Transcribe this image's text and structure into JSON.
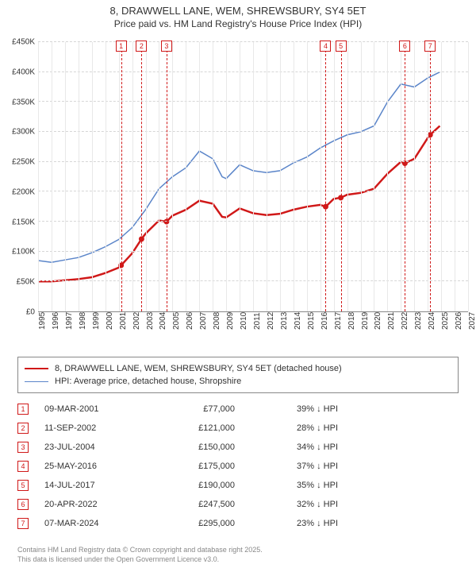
{
  "title": "8, DRAWWELL LANE, WEM, SHREWSBURY, SY4 5ET",
  "subtitle": "Price paid vs. HM Land Registry's House Price Index (HPI)",
  "chart": {
    "type": "line",
    "x_domain": [
      1995,
      2027
    ],
    "y_domain": [
      0,
      450000
    ],
    "y_ticks": [
      0,
      50000,
      100000,
      150000,
      200000,
      250000,
      300000,
      350000,
      400000,
      450000
    ],
    "y_tick_labels": [
      "£0",
      "£50K",
      "£100K",
      "£150K",
      "£200K",
      "£250K",
      "£300K",
      "£350K",
      "£400K",
      "£450K"
    ],
    "x_ticks": [
      1995,
      1996,
      1997,
      1998,
      1999,
      2000,
      2001,
      2002,
      2003,
      2004,
      2005,
      2006,
      2007,
      2008,
      2009,
      2010,
      2011,
      2012,
      2013,
      2014,
      2015,
      2016,
      2017,
      2018,
      2019,
      2020,
      2021,
      2022,
      2023,
      2024,
      2025,
      2026,
      2027
    ],
    "grid_color": "#d6d6d6",
    "background_color": "#ffffff",
    "series": [
      {
        "name": "hpi",
        "label": "HPI: Average price, detached house, Shropshire",
        "color": "#5b85c9",
        "width": 1.5,
        "points": [
          [
            1995.0,
            85000
          ],
          [
            1996.0,
            82000
          ],
          [
            1997.0,
            86000
          ],
          [
            1998.0,
            90000
          ],
          [
            1999.0,
            98000
          ],
          [
            2000.0,
            108000
          ],
          [
            2001.0,
            120000
          ],
          [
            2002.0,
            140000
          ],
          [
            2003.0,
            170000
          ],
          [
            2004.0,
            205000
          ],
          [
            2005.0,
            225000
          ],
          [
            2006.0,
            240000
          ],
          [
            2007.0,
            268000
          ],
          [
            2008.0,
            255000
          ],
          [
            2008.7,
            225000
          ],
          [
            2009.0,
            222000
          ],
          [
            2010.0,
            245000
          ],
          [
            2011.0,
            235000
          ],
          [
            2012.0,
            232000
          ],
          [
            2013.0,
            235000
          ],
          [
            2014.0,
            248000
          ],
          [
            2015.0,
            258000
          ],
          [
            2016.0,
            273000
          ],
          [
            2017.0,
            285000
          ],
          [
            2018.0,
            295000
          ],
          [
            2019.0,
            300000
          ],
          [
            2020.0,
            310000
          ],
          [
            2021.0,
            350000
          ],
          [
            2022.0,
            380000
          ],
          [
            2023.0,
            375000
          ],
          [
            2024.0,
            390000
          ],
          [
            2024.9,
            400000
          ]
        ]
      },
      {
        "name": "price_paid",
        "label": "8, DRAWWELL LANE, WEM, SHREWSBURY, SY4 5ET (detached house)",
        "color": "#d01818",
        "width": 2.5,
        "points": [
          [
            1995.0,
            50000
          ],
          [
            1996.0,
            50000
          ],
          [
            1997.0,
            52000
          ],
          [
            1998.0,
            54000
          ],
          [
            1999.0,
            57000
          ],
          [
            2000.0,
            64000
          ],
          [
            2001.0,
            73000
          ],
          [
            2001.18,
            77000
          ],
          [
            2002.0,
            97000
          ],
          [
            2002.7,
            121000
          ],
          [
            2003.0,
            130000
          ],
          [
            2004.0,
            152000
          ],
          [
            2004.56,
            150000
          ],
          [
            2005.0,
            160000
          ],
          [
            2006.0,
            170000
          ],
          [
            2007.0,
            185000
          ],
          [
            2008.0,
            180000
          ],
          [
            2008.7,
            158000
          ],
          [
            2009.0,
            157000
          ],
          [
            2010.0,
            172000
          ],
          [
            2011.0,
            164000
          ],
          [
            2012.0,
            161000
          ],
          [
            2013.0,
            163000
          ],
          [
            2014.0,
            170000
          ],
          [
            2015.0,
            175000
          ],
          [
            2016.0,
            178000
          ],
          [
            2016.4,
            175000
          ],
          [
            2017.0,
            188000
          ],
          [
            2017.53,
            190000
          ],
          [
            2018.0,
            195000
          ],
          [
            2019.0,
            198000
          ],
          [
            2020.0,
            205000
          ],
          [
            2021.0,
            230000
          ],
          [
            2022.0,
            250000
          ],
          [
            2022.3,
            247500
          ],
          [
            2023.0,
            255000
          ],
          [
            2024.0,
            290000
          ],
          [
            2024.18,
            295000
          ],
          [
            2024.9,
            310000
          ]
        ]
      }
    ],
    "sale_markers": [
      {
        "n": 1,
        "x": 2001.18,
        "y": 77000,
        "color": "#d01818"
      },
      {
        "n": 2,
        "x": 2002.7,
        "y": 121000,
        "color": "#d01818"
      },
      {
        "n": 3,
        "x": 2004.56,
        "y": 150000,
        "color": "#d01818"
      },
      {
        "n": 4,
        "x": 2016.4,
        "y": 175000,
        "color": "#d01818"
      },
      {
        "n": 5,
        "x": 2017.53,
        "y": 190000,
        "color": "#d01818"
      },
      {
        "n": 6,
        "x": 2022.3,
        "y": 247500,
        "color": "#d01818"
      },
      {
        "n": 7,
        "x": 2024.18,
        "y": 295000,
        "color": "#d01818"
      }
    ]
  },
  "legend_items": [
    {
      "color": "#d01818",
      "width": 2.5,
      "label": "8, DRAWWELL LANE, WEM, SHREWSBURY, SY4 5ET (detached house)"
    },
    {
      "color": "#5b85c9",
      "width": 1.5,
      "label": "HPI: Average price, detached house, Shropshire"
    }
  ],
  "sales_table": [
    {
      "n": "1",
      "date": "09-MAR-2001",
      "price": "£77,000",
      "diff": "39% ↓ HPI"
    },
    {
      "n": "2",
      "date": "11-SEP-2002",
      "price": "£121,000",
      "diff": "28% ↓ HPI"
    },
    {
      "n": "3",
      "date": "23-JUL-2004",
      "price": "£150,000",
      "diff": "34% ↓ HPI"
    },
    {
      "n": "4",
      "date": "25-MAY-2016",
      "price": "£175,000",
      "diff": "37% ↓ HPI"
    },
    {
      "n": "5",
      "date": "14-JUL-2017",
      "price": "£190,000",
      "diff": "35% ↓ HPI"
    },
    {
      "n": "6",
      "date": "20-APR-2022",
      "price": "£247,500",
      "diff": "32% ↓ HPI"
    },
    {
      "n": "7",
      "date": "07-MAR-2024",
      "price": "£295,000",
      "diff": "23% ↓ HPI"
    }
  ],
  "footer_line1": "Contains HM Land Registry data © Crown copyright and database right 2025.",
  "footer_line2": "This data is licensed under the Open Government Licence v3.0."
}
